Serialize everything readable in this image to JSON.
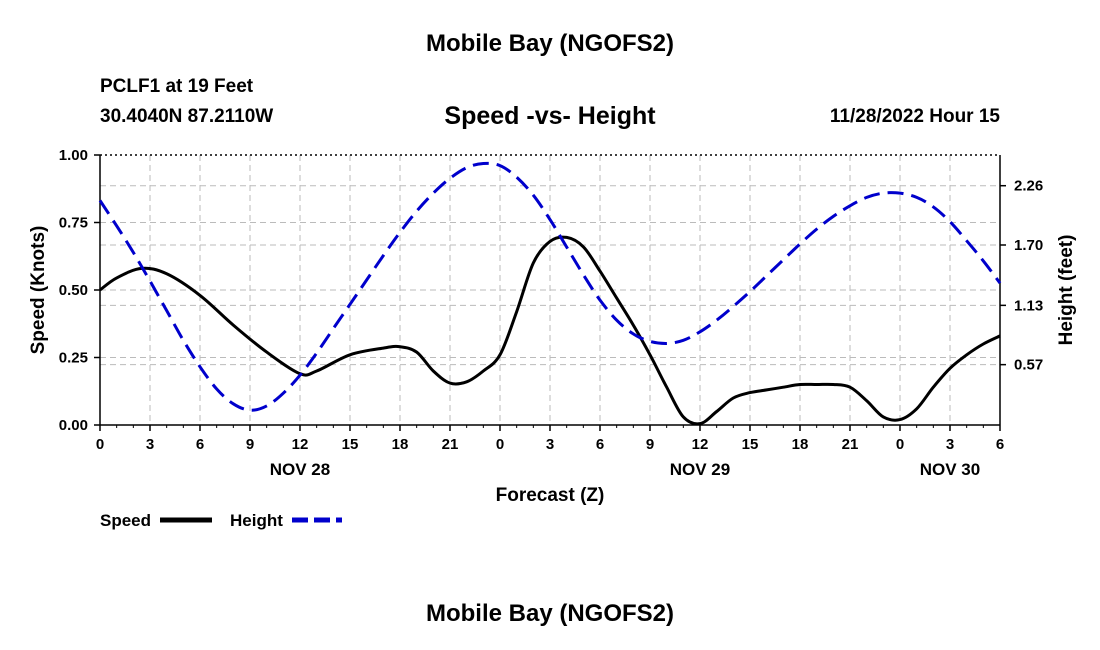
{
  "header": {
    "title": "Mobile Bay (NGOFS2)",
    "station": "PCLF1 at 19 Feet",
    "coords": "30.4040N  87.2110W",
    "subtitle": "Speed -vs- Height",
    "datetime": "11/28/2022 Hour 15"
  },
  "footer": {
    "title": "Mobile Bay (NGOFS2)"
  },
  "colors": {
    "speed": "#000000",
    "height": "#0000cc",
    "grid": "#bbbbbb"
  },
  "chart_data": {
    "type": "line",
    "xlabel": "Forecast (Z)",
    "ylabel": "Speed (Knots)",
    "y2label": "Height (feet)",
    "xlim": [
      0,
      54
    ],
    "ylim": [
      0,
      1.0
    ],
    "y2lim": [
      0,
      2.55
    ],
    "x_ticks": [
      0,
      3,
      6,
      9,
      12,
      15,
      18,
      21,
      24,
      27,
      30,
      33,
      36,
      39,
      42,
      45,
      48,
      51,
      54
    ],
    "x_tick_labels": [
      "0",
      "3",
      "6",
      "9",
      "12",
      "15",
      "18",
      "21",
      "0",
      "3",
      "6",
      "9",
      "12",
      "15",
      "18",
      "21",
      "0",
      "3",
      "6"
    ],
    "date_labels": [
      {
        "x": 12,
        "label": "NOV 28"
      },
      {
        "x": 36,
        "label": "NOV 29"
      },
      {
        "x": 51,
        "label": "NOV 30"
      }
    ],
    "y_ticks": [
      0,
      0.25,
      0.5,
      0.75,
      1.0
    ],
    "y_tick_labels": [
      "0.00",
      "0.25",
      "0.50",
      "0.75",
      "1.00"
    ],
    "y2_ticks": [
      0.57,
      1.13,
      1.7,
      2.26
    ],
    "y2_tick_labels": [
      "0.57",
      "1.13",
      "1.70",
      "2.26"
    ],
    "legend": {
      "position": "bottom-left",
      "items": [
        "Speed",
        "Height"
      ]
    },
    "series": [
      {
        "name": "Speed",
        "axis": "left",
        "style": "solid",
        "x": [
          0,
          1,
          2.5,
          4,
          6,
          8,
          10,
          12,
          13,
          15,
          17,
          18,
          19,
          20,
          21,
          22,
          23,
          24,
          25,
          26,
          27,
          28,
          29,
          30,
          31,
          32,
          33,
          34,
          35,
          36,
          37,
          38,
          39,
          40,
          41,
          42,
          43,
          44,
          45,
          46,
          47,
          48,
          49,
          50,
          51,
          52,
          53,
          54
        ],
        "values": [
          0.5,
          0.545,
          0.58,
          0.56,
          0.48,
          0.37,
          0.27,
          0.19,
          0.2,
          0.26,
          0.285,
          0.29,
          0.27,
          0.2,
          0.155,
          0.16,
          0.2,
          0.26,
          0.42,
          0.6,
          0.68,
          0.695,
          0.66,
          0.57,
          0.47,
          0.37,
          0.26,
          0.14,
          0.03,
          0.005,
          0.05,
          0.1,
          0.12,
          0.13,
          0.14,
          0.15,
          0.15,
          0.15,
          0.14,
          0.09,
          0.03,
          0.02,
          0.06,
          0.14,
          0.21,
          0.26,
          0.3,
          0.33
        ]
      },
      {
        "name": "Height",
        "axis": "right",
        "style": "dashed",
        "x": [
          0,
          1,
          2,
          3,
          4,
          5,
          6,
          7,
          8,
          9,
          10,
          11,
          12,
          13,
          14,
          15,
          16,
          17,
          18,
          19,
          20,
          21,
          22,
          23,
          24,
          25,
          26,
          27,
          28,
          29,
          30,
          31,
          32,
          33,
          34,
          35,
          36,
          37,
          38,
          39,
          40,
          41,
          42,
          43,
          44,
          45,
          46,
          47,
          48,
          49,
          50,
          51,
          52,
          53,
          54
        ],
        "values": [
          2.12,
          1.88,
          1.63,
          1.36,
          1.08,
          0.8,
          0.55,
          0.34,
          0.2,
          0.14,
          0.18,
          0.3,
          0.47,
          0.68,
          0.91,
          1.14,
          1.37,
          1.6,
          1.82,
          2.02,
          2.19,
          2.33,
          2.43,
          2.47,
          2.45,
          2.34,
          2.17,
          1.94,
          1.68,
          1.42,
          1.18,
          0.99,
          0.86,
          0.79,
          0.77,
          0.8,
          0.88,
          0.99,
          1.12,
          1.26,
          1.41,
          1.56,
          1.71,
          1.85,
          1.97,
          2.07,
          2.15,
          2.19,
          2.19,
          2.15,
          2.06,
          1.92,
          1.74,
          1.55,
          1.34
        ]
      }
    ]
  }
}
